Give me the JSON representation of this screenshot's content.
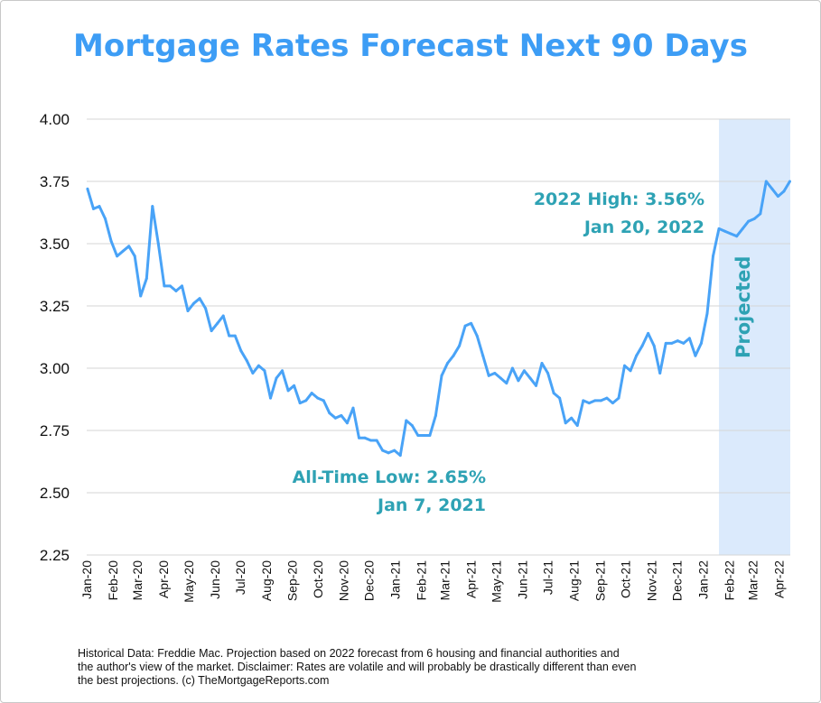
{
  "chart_data": {
    "type": "line",
    "title": "Mortgage Rates Forecast Next 90 Days",
    "xlabel": "",
    "ylabel": "",
    "ylim": [
      2.25,
      4.0
    ],
    "yticks": [
      "4.00",
      "3.75",
      "3.50",
      "3.25",
      "3.00",
      "2.75",
      "2.50",
      "2.25"
    ],
    "grid": "horizontal",
    "x_tick_labels": [
      "Jan-20",
      "Feb-20",
      "Mar-20",
      "Apr-20",
      "May-20",
      "Jun-20",
      "Jul-20",
      "Aug-20",
      "Sep-20",
      "Oct-20",
      "Nov-20",
      "Dec-20",
      "Jan-21",
      "Feb-21",
      "Mar-21",
      "Apr-21",
      "May-21",
      "Jun-21",
      "Jul-21",
      "Aug-21",
      "Sep-21",
      "Oct-21",
      "Nov-21",
      "Dec-21",
      "Jan-22",
      "Feb-22",
      "Mar-22",
      "Apr-22"
    ],
    "dates": [
      "2020-01-02",
      "2020-01-09",
      "2020-01-16",
      "2020-01-23",
      "2020-01-30",
      "2020-02-06",
      "2020-02-13",
      "2020-02-20",
      "2020-02-27",
      "2020-03-05",
      "2020-03-12",
      "2020-03-19",
      "2020-03-26",
      "2020-04-02",
      "2020-04-09",
      "2020-04-16",
      "2020-04-23",
      "2020-04-30",
      "2020-05-07",
      "2020-05-14",
      "2020-05-21",
      "2020-05-28",
      "2020-06-04",
      "2020-06-11",
      "2020-06-18",
      "2020-06-25",
      "2020-07-02",
      "2020-07-09",
      "2020-07-16",
      "2020-07-23",
      "2020-07-30",
      "2020-08-06",
      "2020-08-13",
      "2020-08-20",
      "2020-08-27",
      "2020-09-03",
      "2020-09-10",
      "2020-09-17",
      "2020-09-24",
      "2020-10-01",
      "2020-10-08",
      "2020-10-15",
      "2020-10-22",
      "2020-10-29",
      "2020-11-05",
      "2020-11-12",
      "2020-11-19",
      "2020-11-26",
      "2020-12-03",
      "2020-12-10",
      "2020-12-17",
      "2020-12-24",
      "2020-12-31",
      "2021-01-07",
      "2021-01-14",
      "2021-01-21",
      "2021-01-28",
      "2021-02-04",
      "2021-02-11",
      "2021-02-18",
      "2021-02-25",
      "2021-03-04",
      "2021-03-11",
      "2021-03-18",
      "2021-03-25",
      "2021-04-01",
      "2021-04-08",
      "2021-04-15",
      "2021-04-22",
      "2021-04-29",
      "2021-05-06",
      "2021-05-13",
      "2021-05-20",
      "2021-05-27",
      "2021-06-03",
      "2021-06-10",
      "2021-06-17",
      "2021-06-24",
      "2021-07-01",
      "2021-07-08",
      "2021-07-15",
      "2021-07-22",
      "2021-07-29",
      "2021-08-05",
      "2021-08-12",
      "2021-08-19",
      "2021-08-26",
      "2021-09-02",
      "2021-09-09",
      "2021-09-16",
      "2021-09-23",
      "2021-09-30",
      "2021-10-07",
      "2021-10-14",
      "2021-10-21",
      "2021-10-28",
      "2021-11-04",
      "2021-11-11",
      "2021-11-18",
      "2021-11-25",
      "2021-12-02",
      "2021-12-09",
      "2021-12-16",
      "2021-12-23",
      "2021-12-30",
      "2022-01-06",
      "2022-01-13",
      "2022-01-20",
      "2022-01-27",
      "2022-02-03",
      "2022-02-10",
      "2022-02-17",
      "2022-02-24",
      "2022-03-03",
      "2022-03-10",
      "2022-03-17",
      "2022-03-24",
      "2022-03-31",
      "2022-04-07",
      "2022-04-14"
    ],
    "values": [
      3.72,
      3.64,
      3.65,
      3.6,
      3.51,
      3.45,
      3.47,
      3.49,
      3.45,
      3.29,
      3.36,
      3.65,
      3.5,
      3.33,
      3.33,
      3.31,
      3.33,
      3.23,
      3.26,
      3.28,
      3.24,
      3.15,
      3.18,
      3.21,
      3.13,
      3.13,
      3.07,
      3.03,
      2.98,
      3.01,
      2.99,
      2.88,
      2.96,
      2.99,
      2.91,
      2.93,
      2.86,
      2.87,
      2.9,
      2.88,
      2.87,
      2.82,
      2.8,
      2.81,
      2.78,
      2.84,
      2.72,
      2.72,
      2.71,
      2.71,
      2.67,
      2.66,
      2.67,
      2.65,
      2.79,
      2.77,
      2.73,
      2.73,
      2.73,
      2.81,
      2.97,
      3.02,
      3.05,
      3.09,
      3.17,
      3.18,
      3.13,
      3.05,
      2.97,
      2.98,
      2.96,
      2.94,
      3.0,
      2.95,
      2.99,
      2.96,
      2.93,
      3.02,
      2.98,
      2.9,
      2.88,
      2.78,
      2.8,
      2.77,
      2.87,
      2.86,
      2.87,
      2.87,
      2.88,
      2.86,
      2.88,
      3.01,
      2.99,
      3.05,
      3.09,
      3.14,
      3.09,
      2.98,
      3.1,
      3.1,
      3.11,
      3.1,
      3.12,
      3.05,
      3.1,
      3.22,
      3.45,
      3.56,
      3.55,
      3.54,
      3.53,
      3.56,
      3.59,
      3.6,
      3.62,
      3.75,
      3.72,
      3.69,
      3.71,
      3.75
    ],
    "projected_region": {
      "start": "2022-01-20",
      "end": "2022-04-14",
      "label": "Projected"
    },
    "annotations": [
      {
        "line1": "2022 High: 3.56%",
        "line2": "Jan 20, 2022"
      },
      {
        "line1": "All-Time Low: 2.65%",
        "line2": "Jan 7, 2021"
      }
    ],
    "colors": {
      "line": "#49a3f7",
      "title": "#3d9df5",
      "annotation": "#2ea2b4",
      "projected_fill": "#dbeafc",
      "grid": "#d6d6d6"
    }
  },
  "footer": "Historical Data: Freddie Mac. Projection based on 2022 forecast from 6 housing and financial authorities and the author's view of the market. Disclaimer: Rates are volatile and will probably be drastically different than even the best projections. (c) TheMortgageReports.com"
}
